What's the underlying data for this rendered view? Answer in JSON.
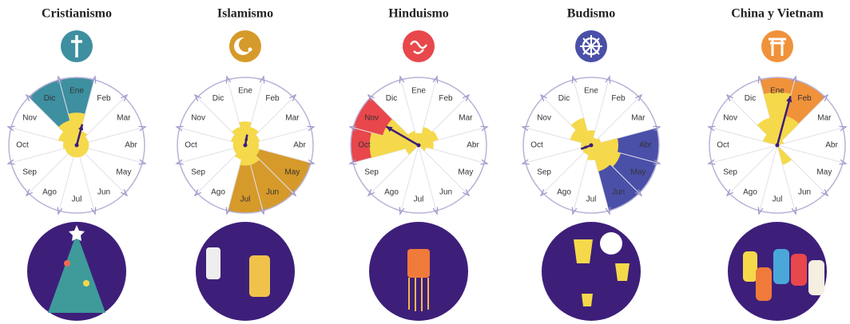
{
  "chart_data": [
    {
      "type": "polar",
      "title": "Cristianismo",
      "color": "#3e8fa0",
      "categories": [
        "Ene",
        "Feb",
        "Mar",
        "Abr",
        "May",
        "Jun",
        "Jul",
        "Ago",
        "Sep",
        "Oct",
        "Nov",
        "Dic"
      ],
      "values": [
        48,
        22,
        18,
        18,
        18,
        18,
        18,
        18,
        18,
        20,
        28,
        38
      ],
      "highlighted": [
        true,
        false,
        false,
        false,
        false,
        false,
        false,
        false,
        false,
        false,
        false,
        true
      ],
      "arrow": {
        "direction": 15,
        "length": 32
      }
    },
    {
      "type": "polar",
      "title": "Islamismo",
      "color": "#d69a2a",
      "categories": [
        "Ene",
        "Feb",
        "Mar",
        "Abr",
        "May",
        "Jun",
        "Jul",
        "Ago",
        "Sep",
        "Oct",
        "Nov",
        "Dic"
      ],
      "values": [
        35,
        28,
        22,
        20,
        22,
        30,
        30,
        22,
        18,
        18,
        22,
        28
      ],
      "highlighted": [
        false,
        false,
        false,
        false,
        true,
        true,
        true,
        false,
        false,
        false,
        false,
        false
      ],
      "arrow": {
        "direction": 10,
        "length": 16
      }
    },
    {
      "type": "polar",
      "title": "Hinduismo",
      "color": "#e8474c",
      "categories": [
        "Ene",
        "Feb",
        "Mar",
        "Abr",
        "May",
        "Jun",
        "Jul",
        "Ago",
        "Sep",
        "Oct",
        "Nov",
        "Dic"
      ],
      "values": [
        18,
        28,
        30,
        22,
        12,
        0,
        0,
        0,
        20,
        72,
        55,
        22
      ],
      "highlighted": [
        false,
        false,
        false,
        false,
        false,
        false,
        false,
        false,
        false,
        true,
        true,
        false
      ],
      "arrow": {
        "direction": 300,
        "length": 55
      }
    },
    {
      "type": "polar",
      "title": "Budismo",
      "color": "#4a4fa8",
      "categories": [
        "Ene",
        "Feb",
        "Mar",
        "Abr",
        "May",
        "Jun",
        "Jul",
        "Ago",
        "Sep",
        "Oct",
        "Nov",
        "Dic"
      ],
      "values": [
        22,
        12,
        15,
        40,
        45,
        40,
        22,
        15,
        15,
        15,
        32,
        42
      ],
      "highlighted": [
        false,
        false,
        false,
        true,
        true,
        true,
        false,
        false,
        false,
        false,
        false,
        false
      ],
      "arrow": {
        "direction": 250,
        "length": 16
      }
    },
    {
      "type": "polar",
      "title": "China y Vietnam",
      "color": "#f0923a",
      "categories": [
        "Ene",
        "Feb",
        "Mar",
        "Abr",
        "May",
        "Jun",
        "Jul",
        "Ago",
        "Sep",
        "Oct",
        "Nov",
        "Dic"
      ],
      "values": [
        78,
        45,
        10,
        0,
        0,
        30,
        0,
        0,
        0,
        0,
        22,
        42
      ],
      "highlighted": [
        true,
        true,
        false,
        false,
        false,
        false,
        false,
        false,
        false,
        false,
        false,
        false
      ],
      "arrow": {
        "direction": 15,
        "length": 75
      }
    }
  ]
}
